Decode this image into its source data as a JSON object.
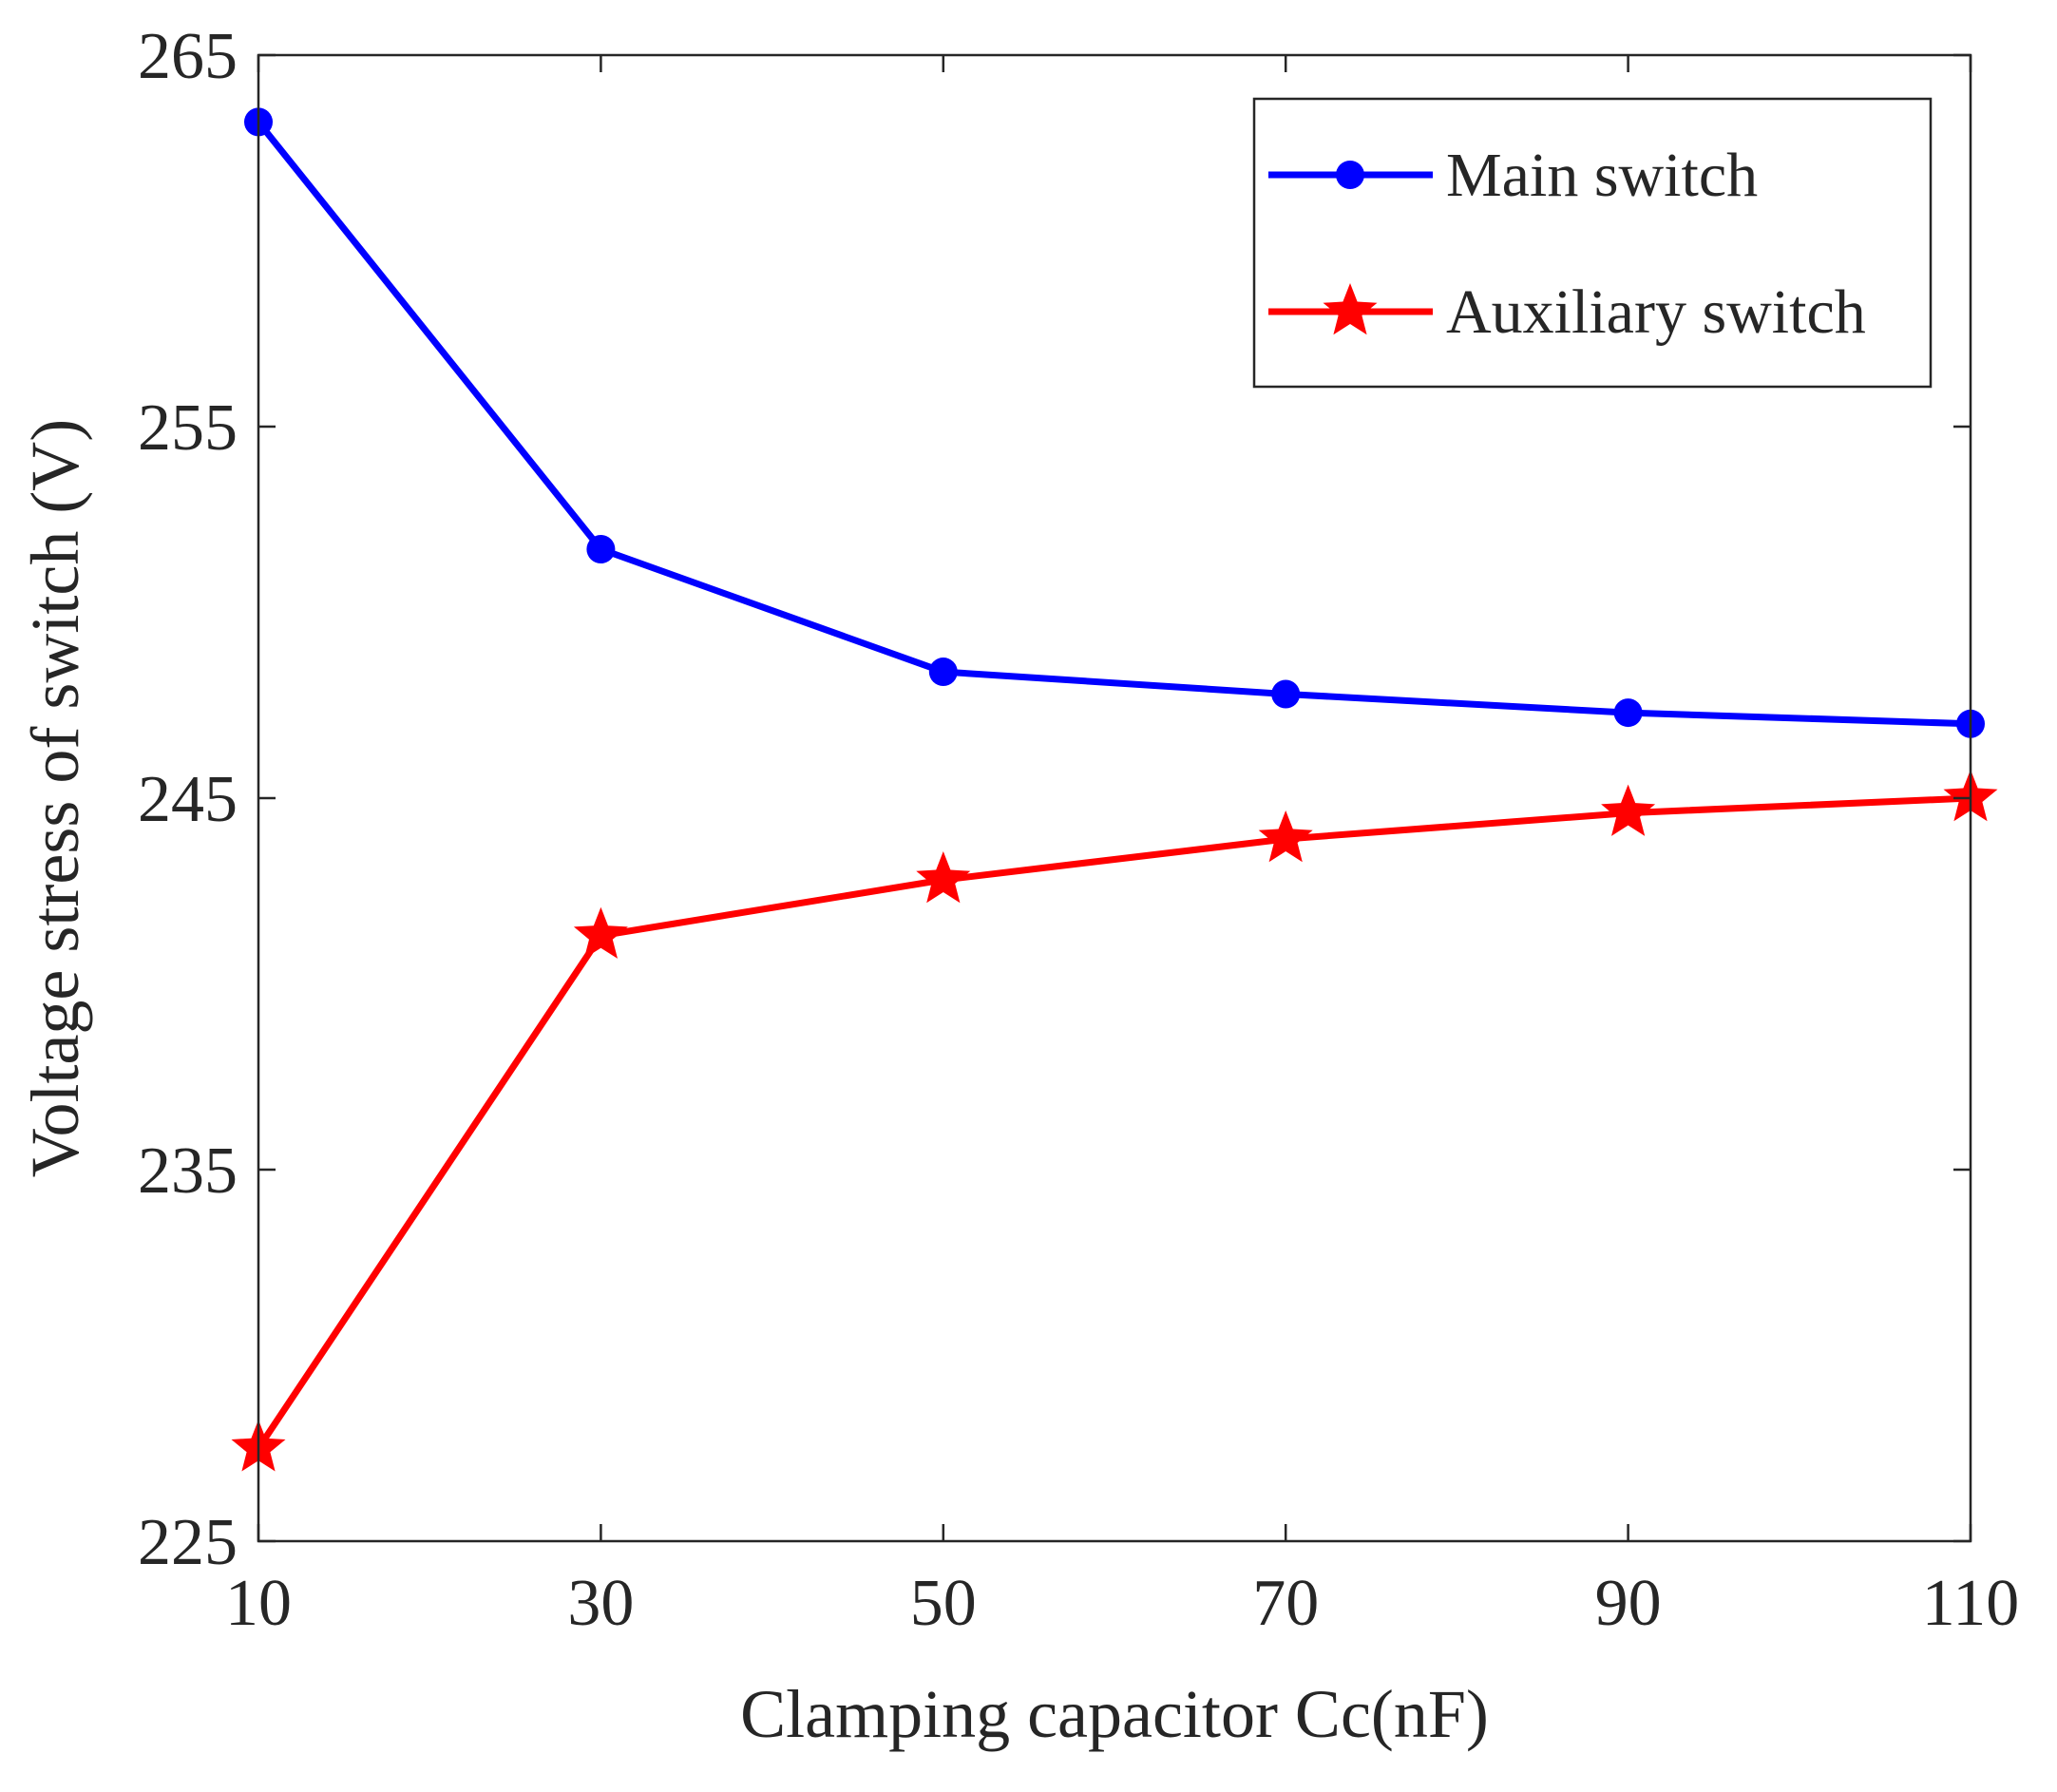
{
  "chart_data": {
    "type": "line",
    "xlabel": "Clamping capacitor Cc(nF)",
    "ylabel": "Voltage stress of switch (V)",
    "x": [
      10,
      30,
      50,
      70,
      90,
      110
    ],
    "xlim": [
      10,
      110
    ],
    "ylim": [
      225,
      265
    ],
    "xticks": [
      10,
      30,
      50,
      70,
      90,
      110
    ],
    "yticks": [
      225,
      235,
      245,
      255,
      265
    ],
    "xtick_labels": [
      "10",
      "30",
      "50",
      "70",
      "90",
      "110"
    ],
    "ytick_labels": [
      "225",
      "235",
      "245",
      "255",
      "265"
    ],
    "grid": false,
    "box": true,
    "legend_position": "top-right",
    "series": [
      {
        "name": "Main switch",
        "values": [
          263.2,
          251.7,
          248.4,
          247.8,
          247.3,
          247.0
        ],
        "color": "#0000ff",
        "marker": "circle"
      },
      {
        "name": "Auxiliary switch",
        "values": [
          227.5,
          241.3,
          242.8,
          243.9,
          244.6,
          245.0
        ],
        "color": "#ff0000",
        "marker": "star"
      }
    ]
  }
}
